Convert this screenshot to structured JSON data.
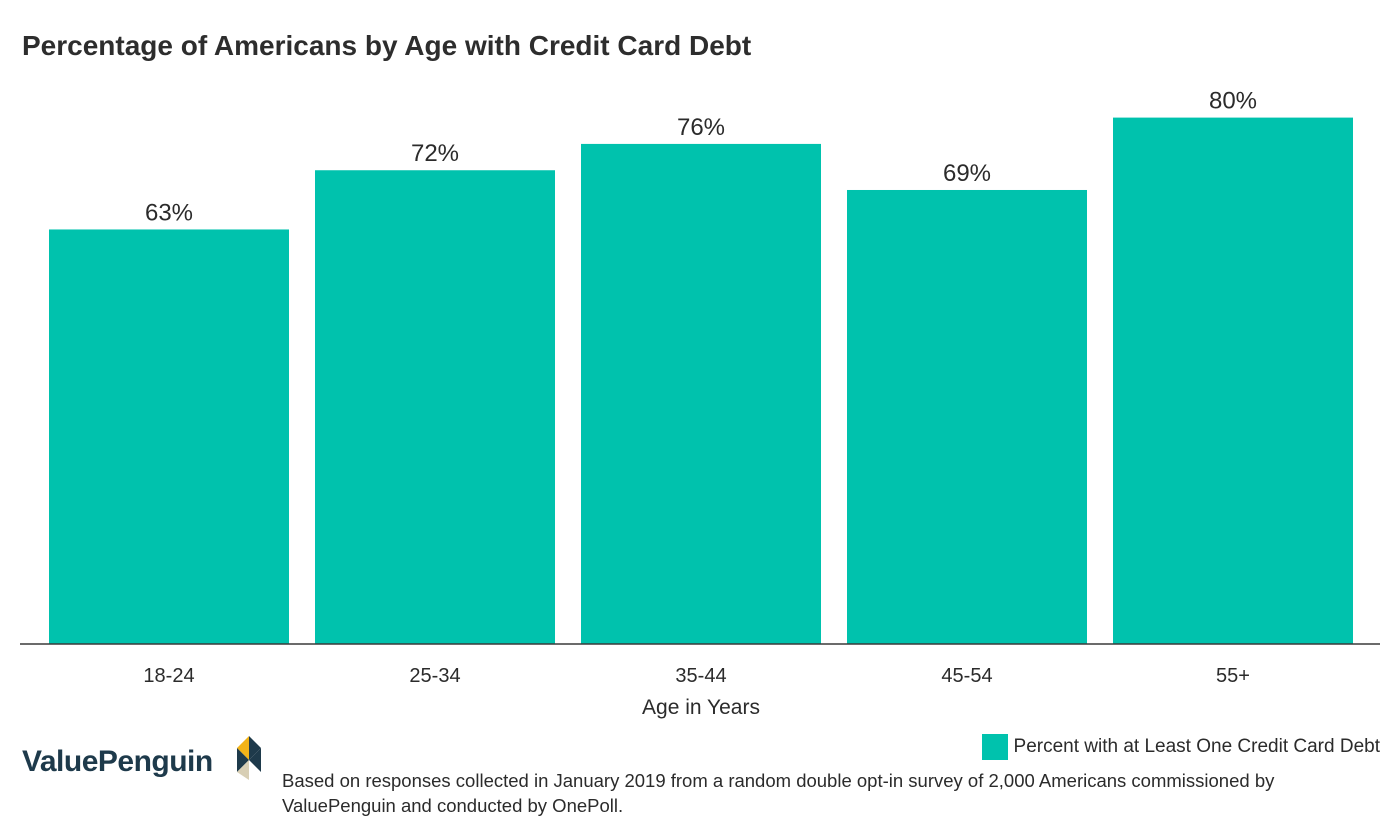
{
  "chart_data": {
    "type": "bar",
    "title": "Percentage of Americans by Age with Credit Card Debt",
    "xlabel": "Age in Years",
    "ylabel": "",
    "categories": [
      "18-24",
      "25-34",
      "35-44",
      "45-54",
      "55+"
    ],
    "series": [
      {
        "name": "Percent with at Least One Credit Card Debt",
        "values": [
          63,
          72,
          76,
          69,
          80
        ],
        "labels": [
          "63%",
          "72%",
          "76%",
          "69%",
          "80%"
        ],
        "color": "#00c2ad"
      }
    ],
    "ylim": [
      0,
      100
    ],
    "grid": false,
    "legend": "bottom-right"
  },
  "brand": {
    "name": "ValuePenguin",
    "logo_icon": "valuepenguin-logo-icon"
  },
  "footnote": "Based on responses collected in January 2019 from a random double opt-in survey of 2,000 Americans commissioned by ValuePenguin and conducted by OnePoll."
}
